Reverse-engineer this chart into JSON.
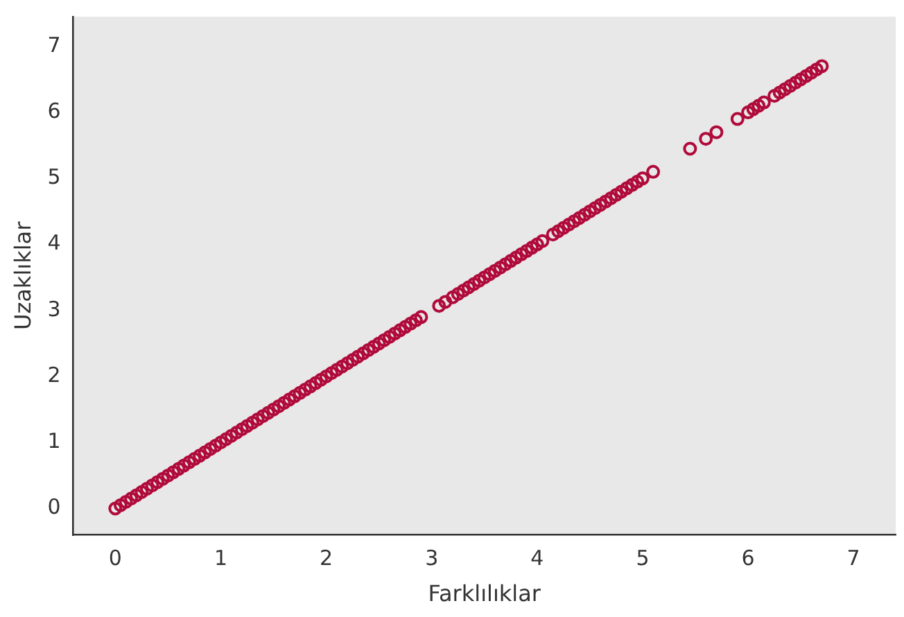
{
  "chart_data": {
    "type": "scatter",
    "xlabel": "Farklılıklar",
    "ylabel": "Uzaklıklar",
    "color": "#b00b3b",
    "marker": "circle",
    "grid": false,
    "xlim": [
      -0.4,
      7.4
    ],
    "ylim": [
      -0.4,
      7.45
    ],
    "xticks": [
      0,
      1,
      2,
      3,
      4,
      5,
      6,
      7
    ],
    "yticks": [
      0,
      1,
      2,
      3,
      4,
      5,
      6,
      7
    ],
    "x": [
      0,
      0.05,
      0.1,
      0.15,
      0.2,
      0.25,
      0.3,
      0.35,
      0.4,
      0.45,
      0.5,
      0.55,
      0.6,
      0.65,
      0.7,
      0.75,
      0.8,
      0.85,
      0.9,
      0.95,
      1,
      1.05,
      1.1,
      1.15,
      1.2,
      1.25,
      1.3,
      1.35,
      1.4,
      1.45,
      1.5,
      1.55,
      1.6,
      1.65,
      1.7,
      1.75,
      1.8,
      1.85,
      1.9,
      1.95,
      2,
      2.05,
      2.1,
      2.15,
      2.2,
      2.25,
      2.3,
      2.35,
      2.4,
      2.45,
      2.5,
      2.55,
      2.6,
      2.65,
      2.7,
      2.75,
      2.8,
      2.85,
      2.9,
      3.07,
      3.13,
      3.2,
      3.25,
      3.3,
      3.35,
      3.4,
      3.45,
      3.5,
      3.55,
      3.6,
      3.65,
      3.7,
      3.75,
      3.8,
      3.85,
      3.9,
      3.95,
      4,
      4.05,
      4.15,
      4.2,
      4.25,
      4.3,
      4.35,
      4.4,
      4.45,
      4.5,
      4.55,
      4.6,
      4.65,
      4.7,
      4.75,
      4.8,
      4.85,
      4.9,
      4.95,
      5,
      5.1,
      5.45,
      5.6,
      5.7,
      5.9,
      6,
      6.05,
      6.1,
      6.15,
      6.25,
      6.3,
      6.35,
      6.4,
      6.45,
      6.5,
      6.55,
      6.6,
      6.65,
      6.7
    ],
    "values": [
      0,
      0.05,
      0.1,
      0.15,
      0.2,
      0.25,
      0.3,
      0.35,
      0.4,
      0.45,
      0.5,
      0.55,
      0.6,
      0.65,
      0.7,
      0.75,
      0.8,
      0.85,
      0.9,
      0.95,
      1,
      1.05,
      1.1,
      1.15,
      1.2,
      1.25,
      1.3,
      1.35,
      1.4,
      1.45,
      1.5,
      1.55,
      1.6,
      1.65,
      1.7,
      1.75,
      1.8,
      1.85,
      1.9,
      1.95,
      2,
      2.05,
      2.1,
      2.15,
      2.2,
      2.25,
      2.3,
      2.35,
      2.4,
      2.45,
      2.5,
      2.55,
      2.6,
      2.65,
      2.7,
      2.75,
      2.8,
      2.85,
      2.9,
      3.07,
      3.13,
      3.2,
      3.25,
      3.3,
      3.35,
      3.4,
      3.45,
      3.5,
      3.55,
      3.6,
      3.65,
      3.7,
      3.75,
      3.8,
      3.85,
      3.9,
      3.95,
      4,
      4.05,
      4.15,
      4.2,
      4.25,
      4.3,
      4.35,
      4.4,
      4.45,
      4.5,
      4.55,
      4.6,
      4.65,
      4.7,
      4.75,
      4.8,
      4.85,
      4.9,
      4.95,
      5,
      5.1,
      5.45,
      5.6,
      5.7,
      5.9,
      6,
      6.05,
      6.1,
      6.15,
      6.25,
      6.3,
      6.35,
      6.4,
      6.45,
      6.5,
      6.55,
      6.6,
      6.65,
      6.7
    ]
  }
}
